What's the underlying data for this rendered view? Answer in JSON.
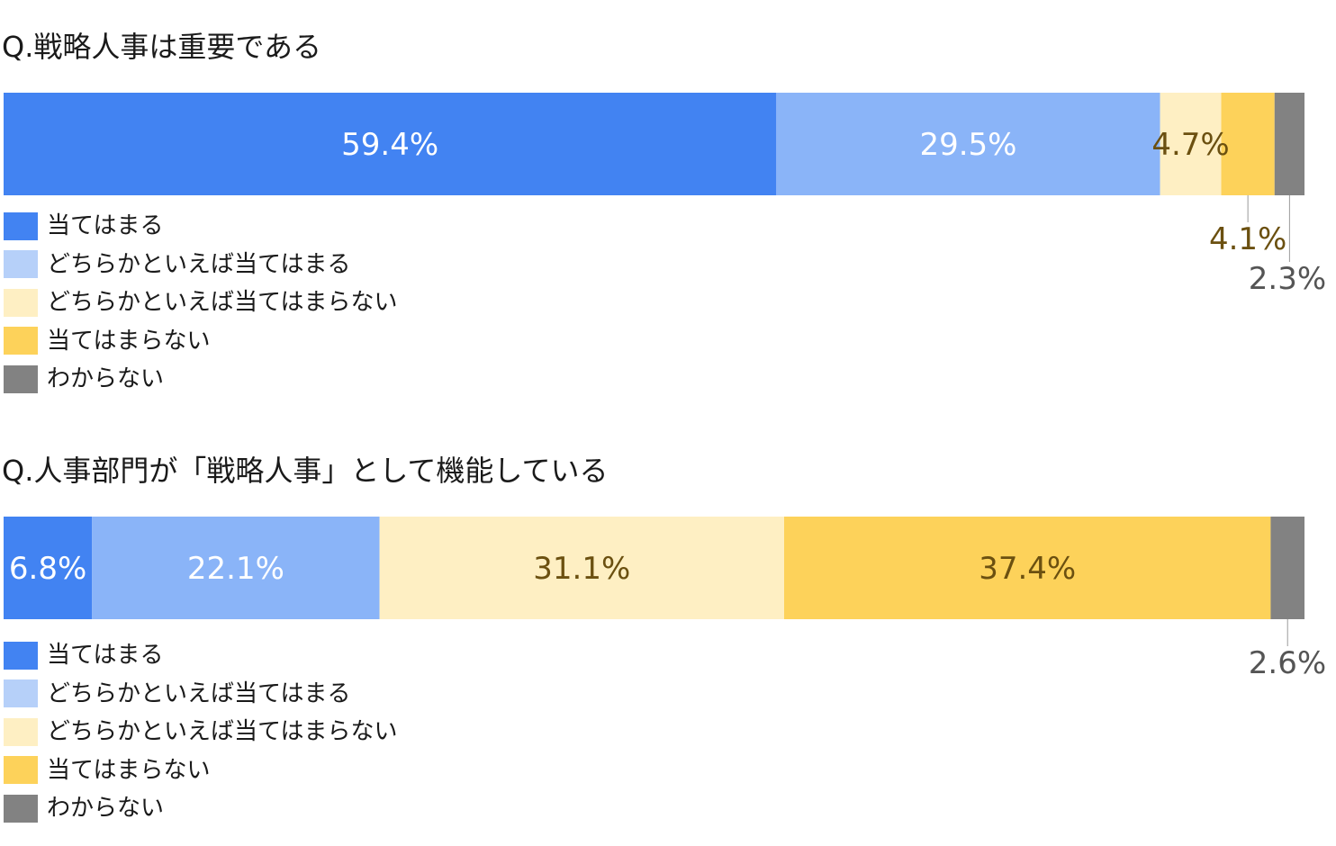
{
  "colors": {
    "strongly_agree": "#4283f2",
    "somewhat_agree": "#8ab4f8",
    "somewhat_disagree": "#feefc3",
    "disagree": "#fdd25a",
    "dont_know": "#828282",
    "label_light": "#ffffff",
    "label_dark": "#6b5010",
    "label_gray": "#555555"
  },
  "chart_data": [
    {
      "type": "bar",
      "orientation": "horizontal-stacked-100",
      "title": "Q.戦略人事は重要である",
      "categories": [
        "当てはまる",
        "どちらかといえば当てはまる",
        "どちらかといえば当てはまらない",
        "当てはまらない",
        "わからない"
      ],
      "values": [
        59.4,
        29.5,
        4.7,
        4.1,
        2.3
      ],
      "value_labels": [
        "59.4%",
        "29.5%",
        "4.7%",
        "4.1%",
        "2.3%"
      ],
      "legend": [
        "当てはまる",
        "どちらかといえば当てはまる",
        "どちらかといえば当てはまらない",
        "当てはまらない",
        "わからない"
      ]
    },
    {
      "type": "bar",
      "orientation": "horizontal-stacked-100",
      "title": "Q.人事部門が「戦略人事」として機能している",
      "categories": [
        "当てはまる",
        "どちらかといえば当てはまる",
        "どちらかといえば当てはまらない",
        "当てはまらない",
        "わからない"
      ],
      "values": [
        6.8,
        22.1,
        31.1,
        37.4,
        2.6
      ],
      "value_labels": [
        "6.8%",
        "22.1%",
        "31.1%",
        "37.4%",
        "2.6%"
      ],
      "legend": [
        "当てはまる",
        "どちらかといえば当てはまる",
        "どちらかといえば当てはまらない",
        "当てはまらない",
        "わからない"
      ]
    }
  ]
}
